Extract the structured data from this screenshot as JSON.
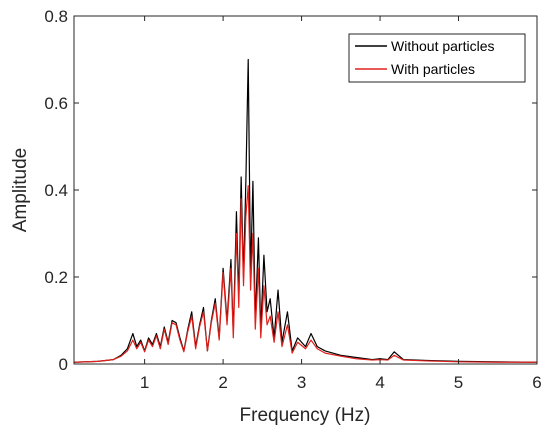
{
  "chart_data": {
    "type": "line",
    "xlabel": "Frequency (Hz)",
    "ylabel": "Amplitude",
    "xlim": [
      0.1,
      6
    ],
    "ylim": [
      0,
      0.8
    ],
    "xticks": [
      "1",
      "2",
      "3",
      "4",
      "5",
      "6"
    ],
    "yticks": [
      "0",
      "0.2",
      "0.4",
      "0.6",
      "0.8"
    ],
    "grid": false,
    "legend_position": "top-right",
    "series": [
      {
        "name": "Without particles",
        "color": "#000000",
        "points": [
          [
            0.1,
            0.004
          ],
          [
            0.4,
            0.006
          ],
          [
            0.6,
            0.01
          ],
          [
            0.7,
            0.02
          ],
          [
            0.78,
            0.035
          ],
          [
            0.85,
            0.07
          ],
          [
            0.9,
            0.04
          ],
          [
            0.95,
            0.055
          ],
          [
            1.0,
            0.03
          ],
          [
            1.05,
            0.06
          ],
          [
            1.1,
            0.045
          ],
          [
            1.15,
            0.07
          ],
          [
            1.2,
            0.04
          ],
          [
            1.25,
            0.085
          ],
          [
            1.3,
            0.05
          ],
          [
            1.35,
            0.1
          ],
          [
            1.4,
            0.095
          ],
          [
            1.45,
            0.06
          ],
          [
            1.5,
            0.03
          ],
          [
            1.55,
            0.08
          ],
          [
            1.6,
            0.12
          ],
          [
            1.65,
            0.04
          ],
          [
            1.7,
            0.09
          ],
          [
            1.75,
            0.13
          ],
          [
            1.8,
            0.03
          ],
          [
            1.85,
            0.1
          ],
          [
            1.9,
            0.15
          ],
          [
            1.95,
            0.06
          ],
          [
            2.0,
            0.22
          ],
          [
            2.05,
            0.1
          ],
          [
            2.1,
            0.24
          ],
          [
            2.13,
            0.07
          ],
          [
            2.17,
            0.35
          ],
          [
            2.2,
            0.15
          ],
          [
            2.23,
            0.43
          ],
          [
            2.26,
            0.2
          ],
          [
            2.29,
            0.42
          ],
          [
            2.32,
            0.7
          ],
          [
            2.35,
            0.2
          ],
          [
            2.38,
            0.42
          ],
          [
            2.41,
            0.1
          ],
          [
            2.45,
            0.29
          ],
          [
            2.48,
            0.08
          ],
          [
            2.52,
            0.25
          ],
          [
            2.56,
            0.12
          ],
          [
            2.6,
            0.15
          ],
          [
            2.65,
            0.06
          ],
          [
            2.7,
            0.17
          ],
          [
            2.75,
            0.05
          ],
          [
            2.82,
            0.12
          ],
          [
            2.88,
            0.03
          ],
          [
            2.95,
            0.06
          ],
          [
            3.05,
            0.04
          ],
          [
            3.12,
            0.07
          ],
          [
            3.2,
            0.04
          ],
          [
            3.3,
            0.03
          ],
          [
            3.5,
            0.02
          ],
          [
            3.7,
            0.015
          ],
          [
            3.9,
            0.01
          ],
          [
            4.0,
            0.012
          ],
          [
            4.1,
            0.01
          ],
          [
            4.18,
            0.028
          ],
          [
            4.3,
            0.01
          ],
          [
            4.6,
            0.008
          ],
          [
            5.0,
            0.006
          ],
          [
            5.5,
            0.005
          ],
          [
            6.0,
            0.004
          ]
        ]
      },
      {
        "name": "With particles",
        "color": "#e0201b",
        "points": [
          [
            0.1,
            0.004
          ],
          [
            0.4,
            0.006
          ],
          [
            0.6,
            0.01
          ],
          [
            0.7,
            0.018
          ],
          [
            0.78,
            0.03
          ],
          [
            0.85,
            0.055
          ],
          [
            0.9,
            0.035
          ],
          [
            0.95,
            0.05
          ],
          [
            1.0,
            0.028
          ],
          [
            1.05,
            0.055
          ],
          [
            1.1,
            0.04
          ],
          [
            1.15,
            0.065
          ],
          [
            1.2,
            0.035
          ],
          [
            1.25,
            0.08
          ],
          [
            1.3,
            0.045
          ],
          [
            1.35,
            0.095
          ],
          [
            1.4,
            0.09
          ],
          [
            1.45,
            0.055
          ],
          [
            1.5,
            0.028
          ],
          [
            1.55,
            0.075
          ],
          [
            1.6,
            0.11
          ],
          [
            1.65,
            0.035
          ],
          [
            1.7,
            0.085
          ],
          [
            1.75,
            0.12
          ],
          [
            1.8,
            0.03
          ],
          [
            1.85,
            0.095
          ],
          [
            1.9,
            0.14
          ],
          [
            1.95,
            0.055
          ],
          [
            2.0,
            0.21
          ],
          [
            2.05,
            0.09
          ],
          [
            2.1,
            0.22
          ],
          [
            2.13,
            0.06
          ],
          [
            2.17,
            0.3
          ],
          [
            2.2,
            0.13
          ],
          [
            2.23,
            0.38
          ],
          [
            2.26,
            0.18
          ],
          [
            2.29,
            0.34
          ],
          [
            2.32,
            0.41
          ],
          [
            2.35,
            0.17
          ],
          [
            2.38,
            0.3
          ],
          [
            2.41,
            0.08
          ],
          [
            2.45,
            0.22
          ],
          [
            2.48,
            0.06
          ],
          [
            2.52,
            0.18
          ],
          [
            2.56,
            0.09
          ],
          [
            2.6,
            0.11
          ],
          [
            2.65,
            0.05
          ],
          [
            2.7,
            0.12
          ],
          [
            2.75,
            0.04
          ],
          [
            2.82,
            0.09
          ],
          [
            2.88,
            0.025
          ],
          [
            2.95,
            0.05
          ],
          [
            3.05,
            0.035
          ],
          [
            3.12,
            0.055
          ],
          [
            3.2,
            0.035
          ],
          [
            3.3,
            0.025
          ],
          [
            3.5,
            0.018
          ],
          [
            3.7,
            0.012
          ],
          [
            3.9,
            0.009
          ],
          [
            4.0,
            0.01
          ],
          [
            4.1,
            0.009
          ],
          [
            4.18,
            0.02
          ],
          [
            4.3,
            0.009
          ],
          [
            4.6,
            0.007
          ],
          [
            5.0,
            0.005
          ],
          [
            5.5,
            0.004
          ],
          [
            6.0,
            0.004
          ]
        ]
      }
    ]
  }
}
